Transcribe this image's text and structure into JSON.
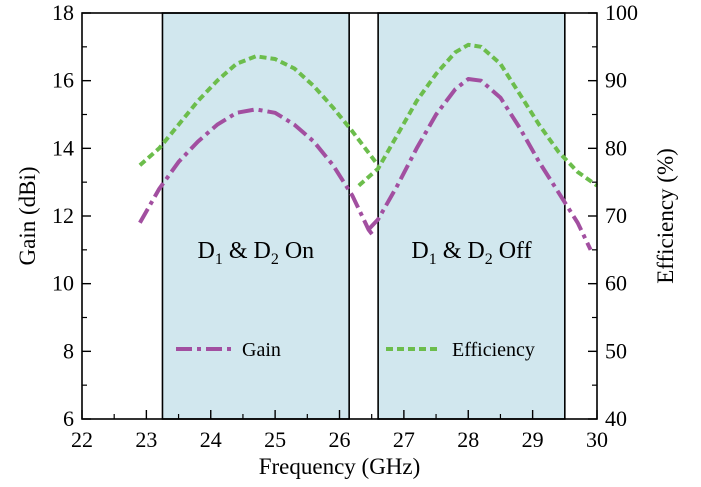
{
  "chart_data": {
    "type": "line",
    "xlabel": "Frequency (GHz)",
    "ylabel_left": "Gain (dBi)",
    "ylabel_right": "Efficiency (%)",
    "xlim": [
      22,
      30
    ],
    "ylim_left": [
      6,
      18
    ],
    "ylim_right": [
      40,
      100
    ],
    "x_ticks": [
      22,
      23,
      24,
      25,
      26,
      27,
      28,
      29,
      30
    ],
    "y_ticks_left": [
      6,
      8,
      10,
      12,
      14,
      16,
      18
    ],
    "y_ticks_right": [
      40,
      50,
      60,
      70,
      80,
      90,
      100
    ],
    "grid": false,
    "regions": [
      {
        "label_main1": "D",
        "sub1": "1",
        "mid": " & D",
        "sub2": "2",
        "label_end": " On",
        "x0": 23.25,
        "x1": 26.15,
        "color": "#d1e7ee"
      },
      {
        "label_main1": "D",
        "sub1": "1",
        "mid": " & D",
        "sub2": "2",
        "label_end": " Off",
        "x0": 26.6,
        "x1": 29.5,
        "color": "#d1e7ee"
      }
    ],
    "legend": [
      {
        "name": "Gain",
        "color": "#a24fa0",
        "dash": "dashdot"
      },
      {
        "name": "Efficiency",
        "color": "#6cbd4c",
        "dash": "dash"
      }
    ],
    "series": [
      {
        "name": "Gain",
        "axis": "left",
        "color": "#a24fa0",
        "segments": [
          [
            [
              22.9,
              11.8
            ],
            [
              23.2,
              12.8
            ],
            [
              23.5,
              13.6
            ],
            [
              23.8,
              14.2
            ],
            [
              24.1,
              14.7
            ],
            [
              24.4,
              15.05
            ],
            [
              24.7,
              15.15
            ],
            [
              25.0,
              15.05
            ],
            [
              25.3,
              14.7
            ],
            [
              25.6,
              14.2
            ],
            [
              25.9,
              13.5
            ],
            [
              26.2,
              12.6
            ],
            [
              26.45,
              11.6
            ],
            [
              26.55,
              11.35
            ]
          ],
          [
            [
              26.45,
              11.6
            ],
            [
              26.6,
              11.9
            ],
            [
              26.9,
              12.9
            ],
            [
              27.2,
              14.0
            ],
            [
              27.5,
              15.0
            ],
            [
              27.8,
              15.75
            ],
            [
              28.0,
              16.05
            ],
            [
              28.2,
              16.0
            ],
            [
              28.5,
              15.5
            ],
            [
              28.8,
              14.6
            ],
            [
              29.1,
              13.6
            ],
            [
              29.4,
              12.7
            ],
            [
              29.7,
              11.8
            ],
            [
              29.9,
              11.0
            ]
          ]
        ]
      },
      {
        "name": "Efficiency",
        "axis": "right",
        "color": "#6cbd4c",
        "segments": [
          [
            [
              22.9,
              77.5
            ],
            [
              23.2,
              80.0
            ],
            [
              23.5,
              83.5
            ],
            [
              23.8,
              87.0
            ],
            [
              24.1,
              90.0
            ],
            [
              24.4,
              92.5
            ],
            [
              24.7,
              93.6
            ],
            [
              25.0,
              93.2
            ],
            [
              25.3,
              91.8
            ],
            [
              25.6,
              89.2
            ],
            [
              25.9,
              86.0
            ],
            [
              26.2,
              82.5
            ],
            [
              26.4,
              80.0
            ],
            [
              26.6,
              77.5
            ]
          ],
          [
            [
              26.3,
              74.5
            ],
            [
              26.6,
              77.0
            ],
            [
              26.9,
              82.0
            ],
            [
              27.2,
              87.0
            ],
            [
              27.5,
              91.0
            ],
            [
              27.8,
              94.2
            ],
            [
              28.0,
              95.3
            ],
            [
              28.2,
              95.0
            ],
            [
              28.5,
              92.5
            ],
            [
              28.8,
              88.0
            ],
            [
              29.1,
              83.5
            ],
            [
              29.4,
              79.5
            ],
            [
              29.7,
              76.5
            ],
            [
              30.0,
              74.5
            ]
          ]
        ]
      }
    ]
  }
}
